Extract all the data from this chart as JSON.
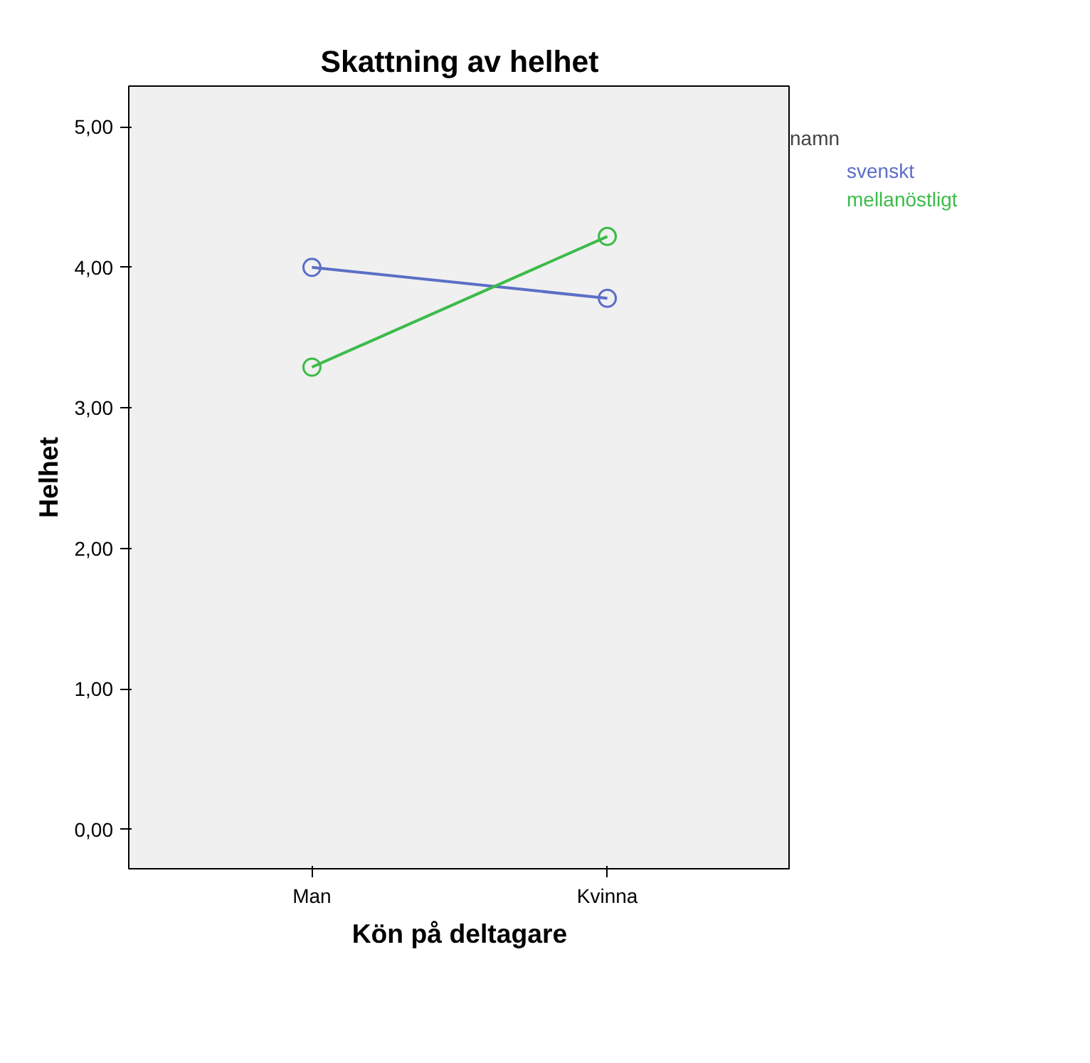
{
  "chart_data": {
    "type": "line",
    "title": "Skattning av helhet",
    "xlabel": "Kön på deltagare",
    "ylabel": "Helhet",
    "legend_title": "namn",
    "categories": [
      "Man",
      "Kvinna"
    ],
    "series": [
      {
        "name": "svenskt",
        "color": "#5b6fc6",
        "values": [
          4.0,
          3.78
        ]
      },
      {
        "name": "mellanöstligt",
        "color": "#3dbb4a",
        "values": [
          3.29,
          4.22
        ]
      }
    ],
    "ylim": [
      -0.28,
      5.29
    ],
    "yticks": [
      {
        "value": 0,
        "label": "0,00"
      },
      {
        "value": 1,
        "label": "1,00"
      },
      {
        "value": 2,
        "label": "2,00"
      },
      {
        "value": 3,
        "label": "3,00"
      },
      {
        "value": 4,
        "label": "4,00"
      },
      {
        "value": 5,
        "label": "5,00"
      }
    ],
    "grid": false,
    "legend": "right",
    "marker": "circle",
    "line_style": "solid"
  }
}
